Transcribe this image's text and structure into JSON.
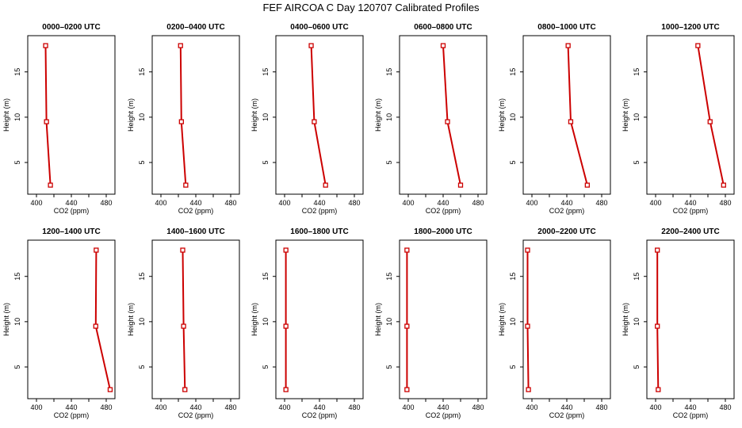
{
  "figure": {
    "title": "FEF AIRCOA C  Day 120707  Calibrated Profiles",
    "xlabel": "CO2 (ppm)",
    "ylabel": "Height (m)",
    "line_color": "#cc0000",
    "axis_color": "#000000"
  },
  "chart_data": [
    {
      "type": "line",
      "title": "0000–0200 UTC",
      "xlabel": "CO2 (ppm)",
      "ylabel": "Height (m)",
      "xlim": [
        390,
        490
      ],
      "ylim": [
        1.5,
        19
      ],
      "xticks": [
        400,
        440,
        480
      ],
      "yticks": [
        5,
        10,
        15
      ],
      "x": [
        410.5,
        411.5,
        416
      ],
      "y": [
        17.9,
        9.5,
        2.5
      ]
    },
    {
      "type": "line",
      "title": "0200–0400 UTC",
      "xlabel": "CO2 (ppm)",
      "ylabel": "Height (m)",
      "xlim": [
        390,
        490
      ],
      "ylim": [
        1.5,
        19
      ],
      "xticks": [
        400,
        440,
        480
      ],
      "yticks": [
        5,
        10,
        15
      ],
      "x": [
        422.5,
        423.5,
        428.5
      ],
      "y": [
        17.9,
        9.5,
        2.5
      ]
    },
    {
      "type": "line",
      "title": "0400–0600 UTC",
      "xlabel": "CO2 (ppm)",
      "ylabel": "Height (m)",
      "xlim": [
        390,
        490
      ],
      "ylim": [
        1.5,
        19
      ],
      "xticks": [
        400,
        440,
        480
      ],
      "yticks": [
        5,
        10,
        15
      ],
      "x": [
        430.5,
        434,
        447
      ],
      "y": [
        17.9,
        9.5,
        2.5
      ]
    },
    {
      "type": "line",
      "title": "0600–0800 UTC",
      "xlabel": "CO2 (ppm)",
      "ylabel": "Height (m)",
      "xlim": [
        390,
        490
      ],
      "ylim": [
        1.5,
        19
      ],
      "xticks": [
        400,
        440,
        480
      ],
      "yticks": [
        5,
        10,
        15
      ],
      "x": [
        440,
        445,
        460
      ],
      "y": [
        17.9,
        9.5,
        2.5
      ]
    },
    {
      "type": "line",
      "title": "0800–1000 UTC",
      "xlabel": "CO2 (ppm)",
      "ylabel": "Height (m)",
      "xlim": [
        390,
        490
      ],
      "ylim": [
        1.5,
        19
      ],
      "xticks": [
        400,
        440,
        480
      ],
      "yticks": [
        5,
        10,
        15
      ],
      "x": [
        441.5,
        444.5,
        463.5
      ],
      "y": [
        17.9,
        9.5,
        2.5
      ]
    },
    {
      "type": "line",
      "title": "1000–1200 UTC",
      "xlabel": "CO2 (ppm)",
      "ylabel": "Height (m)",
      "xlim": [
        390,
        490
      ],
      "ylim": [
        1.5,
        19
      ],
      "xticks": [
        400,
        440,
        480
      ],
      "yticks": [
        5,
        10,
        15
      ],
      "x": [
        448.5,
        462.5,
        478
      ],
      "y": [
        17.9,
        9.5,
        2.5
      ]
    },
    {
      "type": "line",
      "title": "1200–1400 UTC",
      "xlabel": "CO2 (ppm)",
      "ylabel": "Height (m)",
      "xlim": [
        390,
        490
      ],
      "ylim": [
        1.5,
        19
      ],
      "xticks": [
        400,
        440,
        480
      ],
      "yticks": [
        5,
        10,
        15
      ],
      "x": [
        468.5,
        468,
        484.5
      ],
      "y": [
        17.9,
        9.5,
        2.5
      ]
    },
    {
      "type": "line",
      "title": "1400–1600 UTC",
      "xlabel": "CO2 (ppm)",
      "ylabel": "Height (m)",
      "xlim": [
        390,
        490
      ],
      "ylim": [
        1.5,
        19
      ],
      "xticks": [
        400,
        440,
        480
      ],
      "yticks": [
        5,
        10,
        15
      ],
      "x": [
        425,
        426,
        427.5
      ],
      "y": [
        17.9,
        9.5,
        2.5
      ]
    },
    {
      "type": "line",
      "title": "1600–1800 UTC",
      "xlabel": "CO2 (ppm)",
      "ylabel": "Height (m)",
      "xlim": [
        390,
        490
      ],
      "ylim": [
        1.5,
        19
      ],
      "xticks": [
        400,
        440,
        480
      ],
      "yticks": [
        5,
        10,
        15
      ],
      "x": [
        401.5,
        401.5,
        401.5
      ],
      "y": [
        17.9,
        9.5,
        2.5
      ]
    },
    {
      "type": "line",
      "title": "1800–2000 UTC",
      "xlabel": "CO2 (ppm)",
      "ylabel": "Height (m)",
      "xlim": [
        390,
        490
      ],
      "ylim": [
        1.5,
        19
      ],
      "xticks": [
        400,
        440,
        480
      ],
      "yticks": [
        5,
        10,
        15
      ],
      "x": [
        398.5,
        398.5,
        398.5
      ],
      "y": [
        17.9,
        9.5,
        2.5
      ]
    },
    {
      "type": "line",
      "title": "2000–2200 UTC",
      "xlabel": "CO2 (ppm)",
      "ylabel": "Height (m)",
      "xlim": [
        390,
        490
      ],
      "ylim": [
        1.5,
        19
      ],
      "xticks": [
        400,
        440,
        480
      ],
      "yticks": [
        5,
        10,
        15
      ],
      "x": [
        395,
        395,
        396
      ],
      "y": [
        17.9,
        9.5,
        2.5
      ]
    },
    {
      "type": "line",
      "title": "2200–2400 UTC",
      "xlabel": "CO2 (ppm)",
      "ylabel": "Height (m)",
      "xlim": [
        390,
        490
      ],
      "ylim": [
        1.5,
        19
      ],
      "xticks": [
        400,
        440,
        480
      ],
      "yticks": [
        5,
        10,
        15
      ],
      "x": [
        402,
        402,
        403
      ],
      "y": [
        17.9,
        9.5,
        2.5
      ]
    }
  ]
}
